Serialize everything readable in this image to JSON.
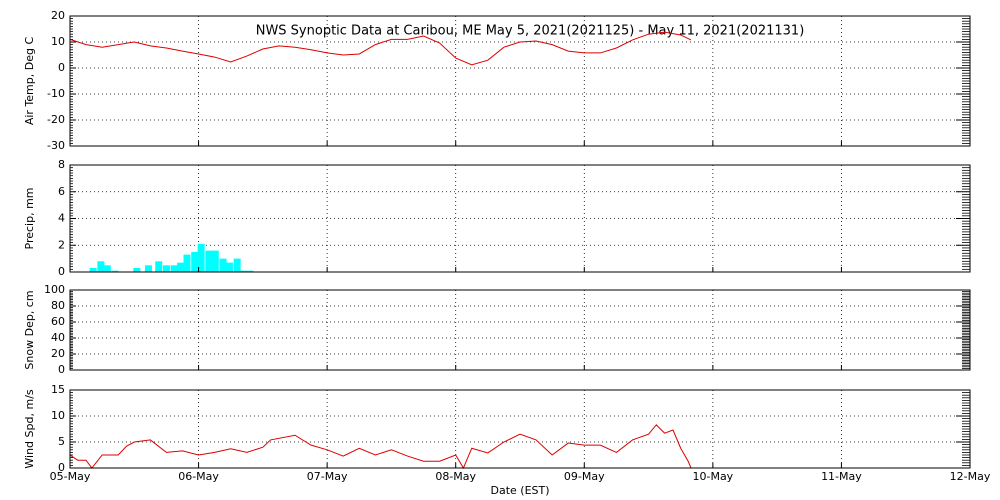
{
  "chart_data": [
    {
      "type": "line",
      "title": "NWS Synoptic Data at Caribou, ME   May  5, 2021(2021125) - May 11, 2021(2021131)",
      "ylabel": "Air Temp, Deg C",
      "ylim": [
        -30,
        20
      ],
      "yticks": [
        -30,
        -20,
        -10,
        0,
        10,
        20
      ],
      "grid": true,
      "color": "#dd0000",
      "x": [
        0,
        0.125,
        0.25,
        0.375,
        0.5,
        0.625,
        0.75,
        0.875,
        1,
        1.125,
        1.25,
        1.375,
        1.5,
        1.625,
        1.75,
        1.875,
        2,
        2.125,
        2.25,
        2.375,
        2.5,
        2.625,
        2.75,
        2.875,
        3,
        3.125,
        3.25,
        3.375,
        3.5,
        3.625,
        3.75,
        3.875,
        4,
        4.125,
        4.25,
        4.375,
        4.5,
        4.625,
        4.75,
        4.83
      ],
      "values": [
        11,
        9,
        8,
        9,
        10,
        8.5,
        7.7,
        6.5,
        5.4,
        4.2,
        2.3,
        4.6,
        7.3,
        8.5,
        8,
        7,
        5.8,
        5,
        5.4,
        9,
        11,
        11,
        12.3,
        9.6,
        3.8,
        1.2,
        3,
        8,
        10,
        10.4,
        9,
        6.5,
        5.8,
        5.8,
        7.7,
        10.8,
        13,
        13.8,
        12.7,
        10.8
      ]
    },
    {
      "type": "bar",
      "ylabel": "Precip, mm",
      "ylim": [
        0,
        8
      ],
      "yticks": [
        0,
        2,
        4,
        6,
        8
      ],
      "grid": true,
      "color": "#00ffff",
      "x": [
        0.18,
        0.24,
        0.29,
        0.35,
        0.52,
        0.61,
        0.69,
        0.75,
        0.81,
        0.86,
        0.91,
        0.97,
        1.02,
        1.08,
        1.13,
        1.19,
        1.24,
        1.3,
        1.35,
        1.4
      ],
      "values": [
        0.3,
        0.8,
        0.5,
        0.1,
        0.3,
        0.5,
        0.8,
        0.5,
        0.5,
        0.7,
        1.3,
        1.5,
        2.1,
        1.6,
        1.6,
        1.0,
        0.7,
        1.0,
        0.1,
        0.1
      ]
    },
    {
      "type": "line",
      "ylabel": "Snow Dep, cm",
      "ylim": [
        0,
        100
      ],
      "yticks": [
        0,
        20,
        40,
        60,
        80,
        100
      ],
      "grid": true,
      "color": "#dd0000"
    },
    {
      "type": "line",
      "ylabel": "Wind Spd, m/s",
      "xlabel": "Date (EST)",
      "ylim": [
        0,
        15
      ],
      "yticks": [
        0,
        5,
        10,
        15
      ],
      "grid": true,
      "color": "#dd0000",
      "xlim": [
        0,
        7
      ],
      "xticks": [
        {
          "value": 0,
          "label": "05-May"
        },
        {
          "value": 1,
          "label": "06-May"
        },
        {
          "value": 2,
          "label": "07-May"
        },
        {
          "value": 3,
          "label": "08-May"
        },
        {
          "value": 4,
          "label": "09-May"
        },
        {
          "value": 5,
          "label": "10-May"
        },
        {
          "value": 6,
          "label": "11-May"
        },
        {
          "value": 7,
          "label": "12-May"
        }
      ],
      "x": [
        0,
        0.06,
        0.125,
        0.17,
        0.25,
        0.375,
        0.44,
        0.5,
        0.625,
        0.75,
        0.875,
        1,
        1.125,
        1.25,
        1.375,
        1.5,
        1.56,
        1.75,
        1.875,
        2,
        2.125,
        2.25,
        2.375,
        2.5,
        2.625,
        2.75,
        2.875,
        3,
        3.06,
        3.125,
        3.25,
        3.375,
        3.5,
        3.625,
        3.75,
        3.875,
        4,
        4.125,
        4.25,
        4.375,
        4.5,
        4.56,
        4.625,
        4.69,
        4.75,
        4.81,
        4.83
      ],
      "values": [
        2.5,
        1.5,
        1.5,
        0,
        2.5,
        2.5,
        4.2,
        5,
        5.4,
        3,
        3.3,
        2.5,
        3,
        3.7,
        3,
        4,
        5.4,
        6.3,
        4.4,
        3.5,
        2.3,
        3.8,
        2.5,
        3.5,
        2.3,
        1.3,
        1.3,
        2.5,
        0,
        3.8,
        2.9,
        5,
        6.5,
        5.4,
        2.5,
        4.8,
        4.4,
        4.4,
        3,
        5.4,
        6.5,
        8.3,
        6.7,
        7.3,
        3.8,
        1.2,
        0
      ]
    }
  ]
}
